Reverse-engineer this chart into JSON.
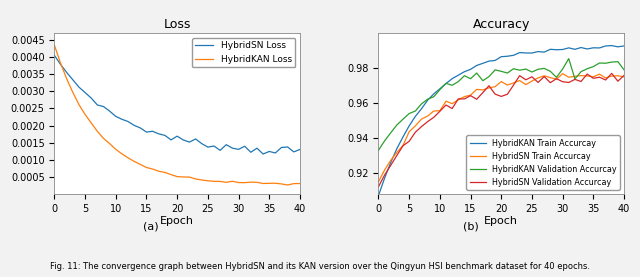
{
  "epochs": 40,
  "loss_title": "Loss",
  "accuracy_title": "Accuracy",
  "xlabel": "Epoch",
  "sublabel_a": "(a)",
  "sublabel_b": "(b)",
  "caption": "Fig. 11: The convergence graph between HybridSN and its KAN version over the Qingyun HSI benchmark dataset for 40 epochs.",
  "color_hybridSN_loss": "#1f77b4",
  "color_hybridKAN_loss": "#ff7f0e",
  "color_hybridKAN_train": "#1f77b4",
  "color_hybridSN_train": "#ff7f0e",
  "color_hybridKAN_val": "#2ca02c",
  "color_hybridSN_val": "#d62728",
  "legend_loss": [
    "HybridSN Loss",
    "HybridKAN Loss"
  ],
  "legend_accuracy": [
    "HybridKAN Train Accurcay",
    "HybridSN Train Accurcay",
    "HybridKAN Validation Accurcay",
    "HybridSN Validation Accurcay"
  ],
  "loss_ylim": [
    0.0,
    0.0047
  ],
  "loss_yticks": [
    0.0005,
    0.001,
    0.0015,
    0.002,
    0.0025,
    0.003,
    0.0035,
    0.004,
    0.0045
  ],
  "acc_ylim": [
    0.908,
    1.0
  ],
  "acc_yticks": [
    0.92,
    0.94,
    0.96,
    0.98
  ],
  "xticks": [
    0,
    5,
    10,
    15,
    20,
    25,
    30,
    35,
    40
  ],
  "figure_bg": "#f2f2f2",
  "axes_bg": "#ffffff"
}
